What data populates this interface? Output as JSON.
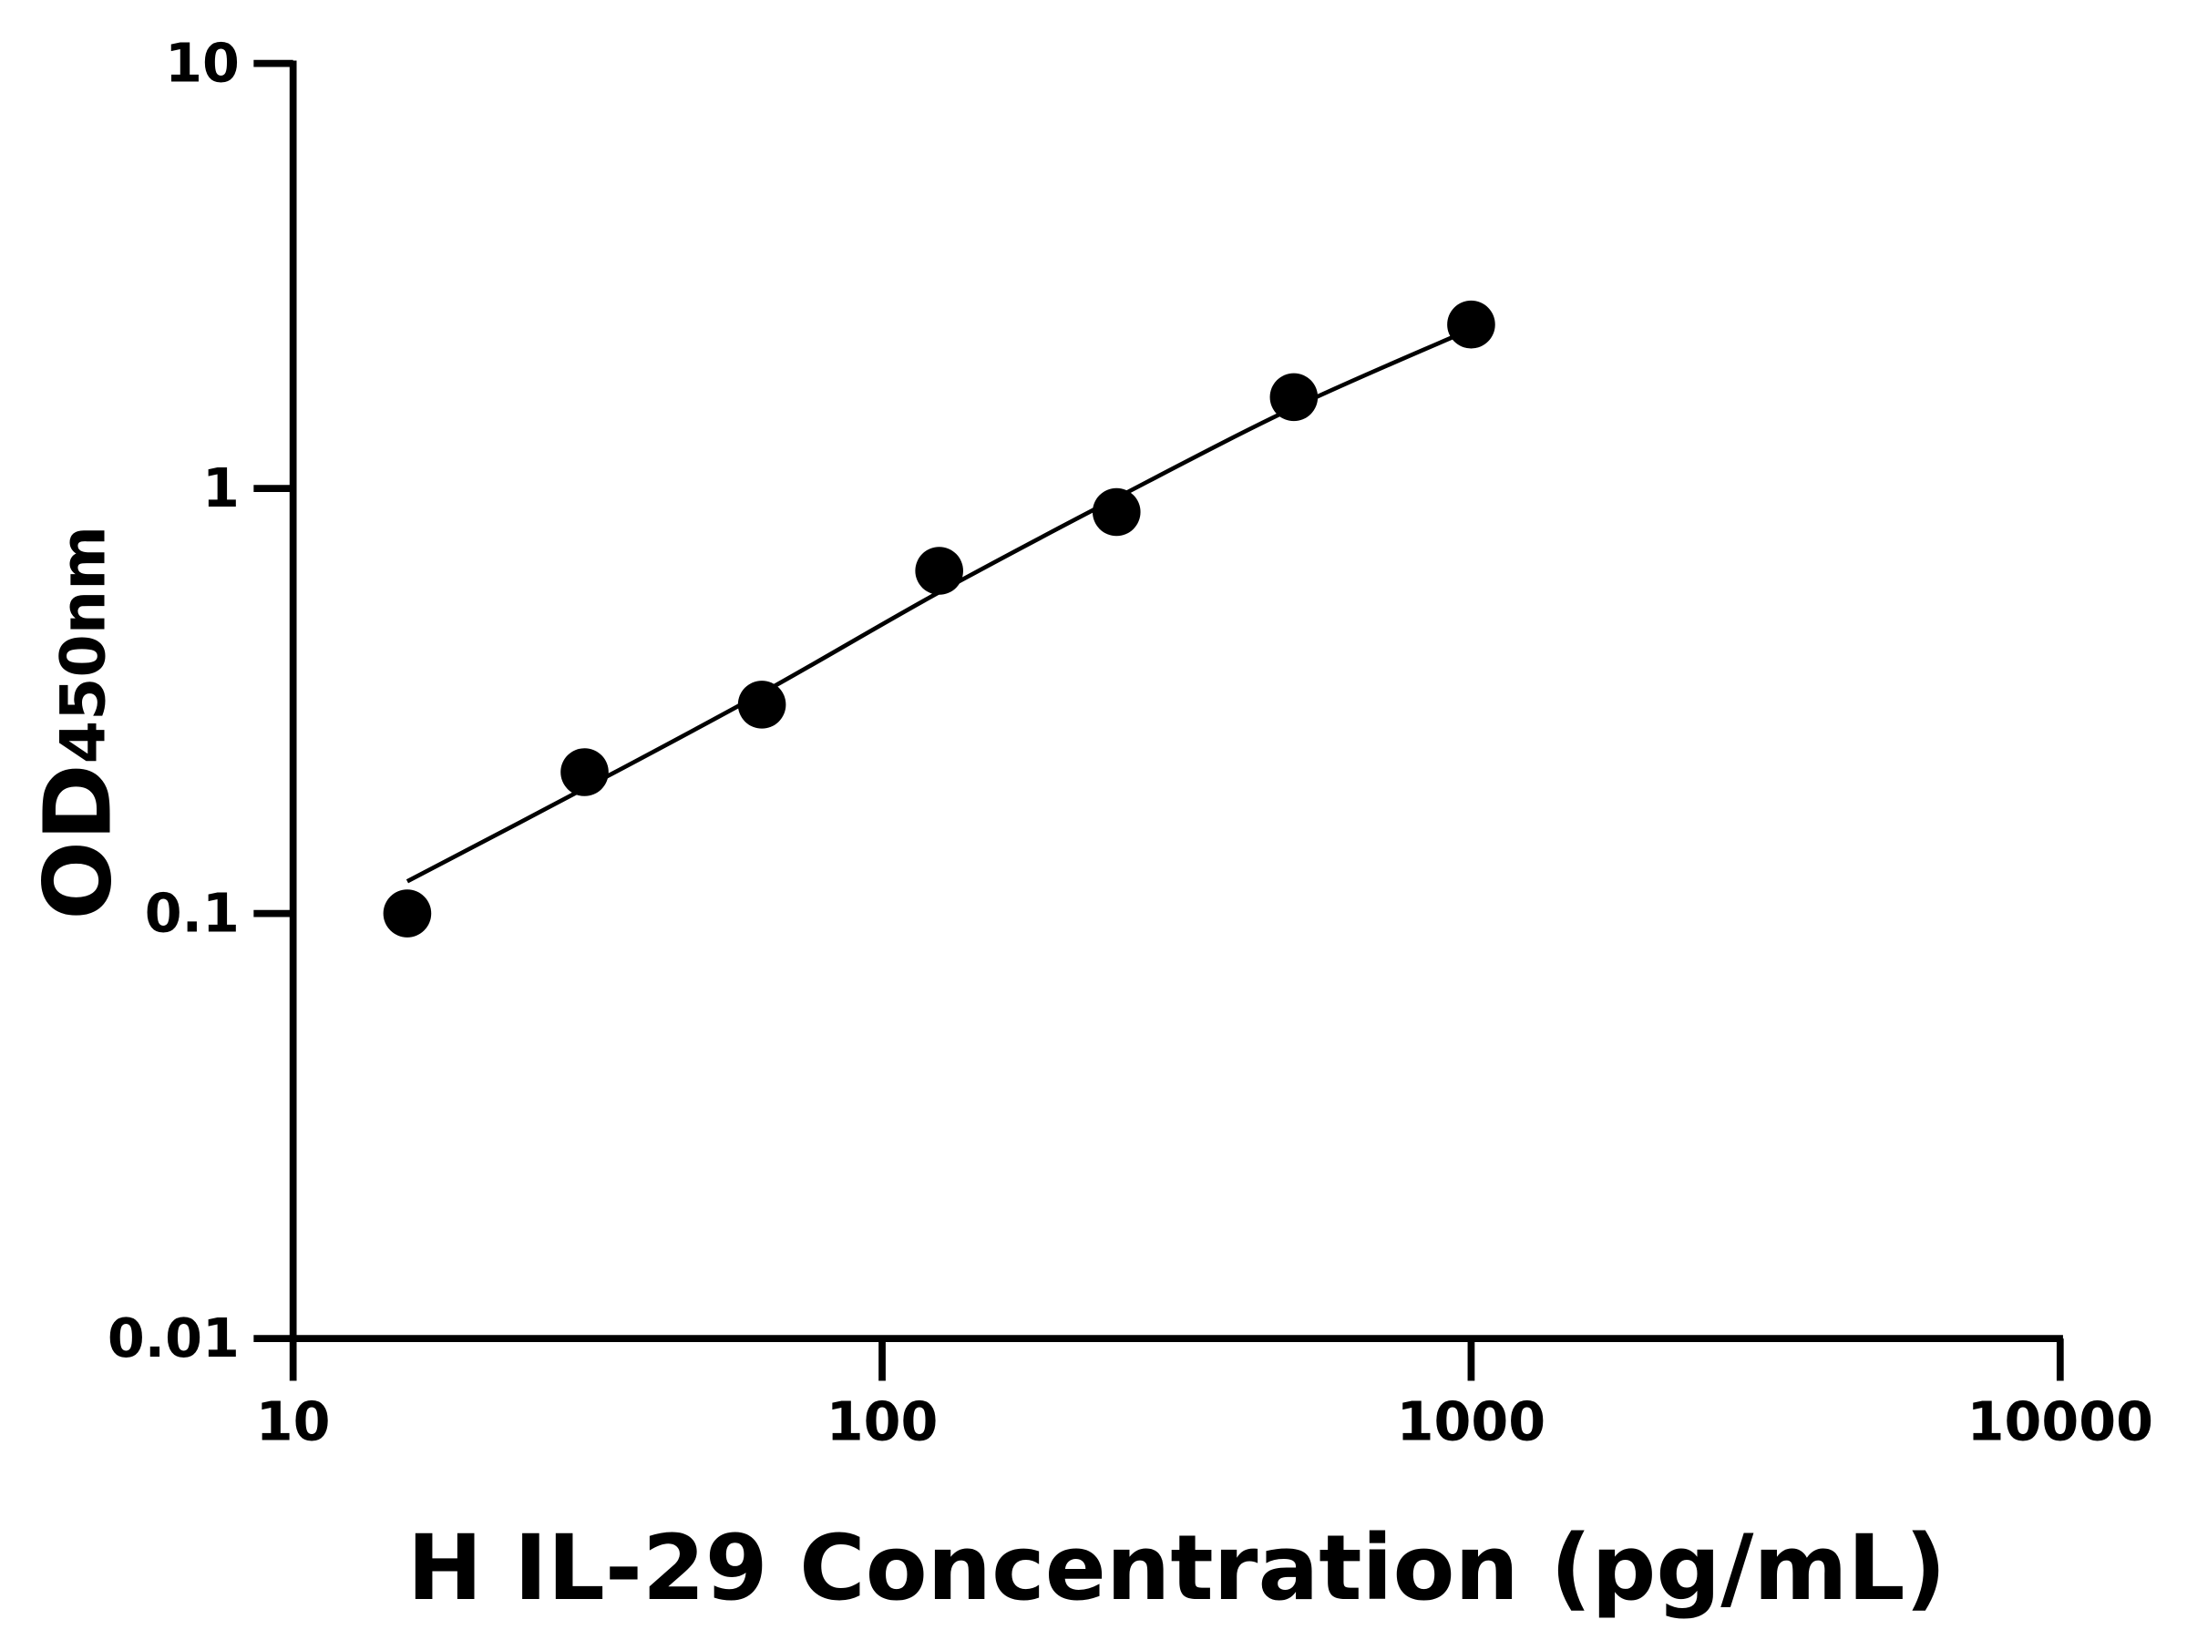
{
  "chart_data": {
    "type": "scatter",
    "title": "",
    "xlabel": "H IL-29 Concentration (pg/mL)",
    "ylabel_main": "OD",
    "ylabel_sub": "450nm",
    "x_scale": "log",
    "y_scale": "log",
    "xlim": [
      10,
      10000
    ],
    "ylim": [
      0.01,
      10
    ],
    "x_ticks": [
      "10",
      "100",
      "1000",
      "10000"
    ],
    "y_ticks": [
      "0.01",
      "0.1",
      "1",
      "10"
    ],
    "grid": false,
    "marker_color": "#000000",
    "points": [
      {
        "x": 15.625,
        "y": 0.1
      },
      {
        "x": 31.25,
        "y": 0.215
      },
      {
        "x": 62.5,
        "y": 0.31
      },
      {
        "x": 125,
        "y": 0.64
      },
      {
        "x": 250,
        "y": 0.88
      },
      {
        "x": 500,
        "y": 1.64
      },
      {
        "x": 1000,
        "y": 2.43
      }
    ],
    "fit_curve": [
      {
        "x": 15.625,
        "y": 0.119
      },
      {
        "x": 31.25,
        "y": 0.197
      },
      {
        "x": 62.5,
        "y": 0.33
      },
      {
        "x": 125,
        "y": 0.57
      },
      {
        "x": 250,
        "y": 0.95
      },
      {
        "x": 500,
        "y": 1.55
      },
      {
        "x": 1000,
        "y": 2.37
      }
    ]
  }
}
